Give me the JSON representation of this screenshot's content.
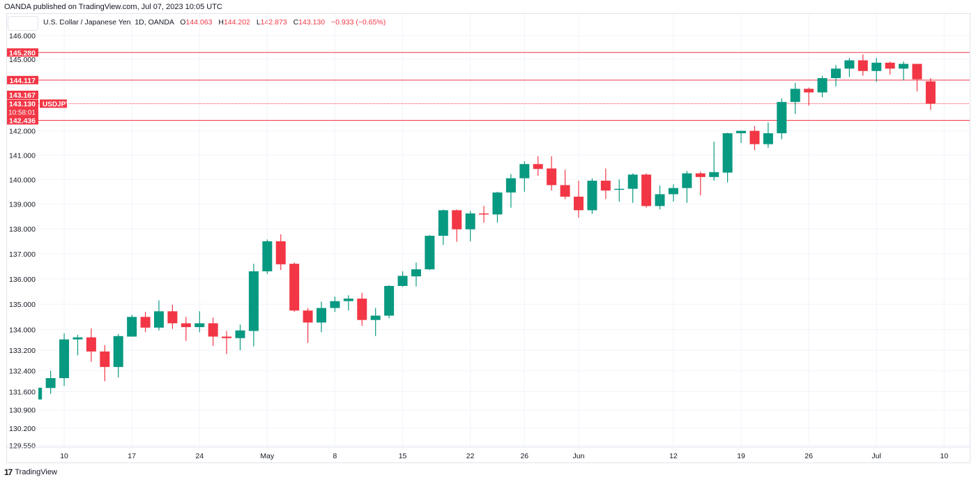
{
  "header": {
    "published": "OANDA published on TradingView.com, Jul 07, 2023 10:05 UTC"
  },
  "legend": {
    "symbol": "U.S. Dollar / Japanese Yen, 1D, OANDA",
    "o_label": "O",
    "o": "144.063",
    "h_label": "H",
    "h": "144.202",
    "l_label": "L",
    "l": "142.873",
    "c_label": "C",
    "c": "143.130",
    "change": "−0.933 (−0.65%)"
  },
  "footer": {
    "brand": "TradingView"
  },
  "colors": {
    "up": "#089981",
    "down": "#f23645",
    "grid": "#f0f3fa",
    "level": "#f23645"
  },
  "chart_data": {
    "type": "candlestick",
    "symbol": "USDJPY",
    "scale": "log",
    "y_ticks": [
      "146.000",
      "145.000",
      "142.000",
      "141.000",
      "140.000",
      "139.000",
      "138.000",
      "137.000",
      "136.000",
      "135.000",
      "134.000",
      "133.200",
      "132.400",
      "131.600",
      "130.900",
      "130.200",
      "129.550"
    ],
    "x_ticks": [
      {
        "label": "10",
        "bar": 2
      },
      {
        "label": "17",
        "bar": 7
      },
      {
        "label": "24",
        "bar": 12
      },
      {
        "label": "May",
        "bar": 17
      },
      {
        "label": "8",
        "bar": 22
      },
      {
        "label": "15",
        "bar": 27
      },
      {
        "label": "22",
        "bar": 32
      },
      {
        "label": "26",
        "bar": 36
      },
      {
        "label": "Jun",
        "bar": 40
      },
      {
        "label": "12",
        "bar": 47
      },
      {
        "label": "19",
        "bar": 52
      },
      {
        "label": "26",
        "bar": 57
      },
      {
        "label": "Jul",
        "bar": 62
      },
      {
        "label": "10",
        "bar": 67
      }
    ],
    "levels": [
      {
        "label": "145.280",
        "value": 145.28
      },
      {
        "label": "144.117",
        "value": 144.117
      },
      {
        "label": "142.436",
        "value": 142.436
      }
    ],
    "extra_label": {
      "label": "143.167",
      "value": 143.167
    },
    "current_price": {
      "label": "143.130",
      "value": 143.13,
      "countdown": "10:58:01",
      "symbol_tag": "USDJPY"
    },
    "ohlc": [
      [
        131.3,
        131.8,
        131.3,
        131.75
      ],
      [
        131.74,
        132.4,
        131.52,
        132.12
      ],
      [
        132.12,
        133.86,
        131.82,
        133.62
      ],
      [
        133.62,
        133.8,
        133.0,
        133.7
      ],
      [
        133.7,
        134.05,
        132.75,
        133.15
      ],
      [
        133.15,
        133.4,
        132.0,
        132.55
      ],
      [
        132.55,
        133.83,
        132.15,
        133.75
      ],
      [
        133.73,
        134.58,
        133.73,
        134.5
      ],
      [
        134.5,
        134.7,
        133.9,
        134.08
      ],
      [
        134.08,
        135.15,
        133.97,
        134.72
      ],
      [
        134.72,
        134.98,
        134.03,
        134.25
      ],
      [
        134.25,
        134.5,
        133.56,
        134.1
      ],
      [
        134.1,
        134.72,
        133.9,
        134.25
      ],
      [
        134.25,
        134.47,
        133.37,
        133.73
      ],
      [
        133.73,
        133.95,
        133.05,
        133.67
      ],
      [
        133.67,
        134.2,
        133.2,
        133.97
      ],
      [
        133.95,
        136.6,
        133.35,
        136.3
      ],
      [
        136.3,
        137.57,
        136.2,
        137.5
      ],
      [
        137.5,
        137.78,
        136.35,
        136.58
      ],
      [
        136.6,
        136.65,
        134.7,
        134.75
      ],
      [
        134.75,
        134.85,
        133.48,
        134.28
      ],
      [
        134.28,
        135.1,
        133.9,
        134.85
      ],
      [
        134.85,
        135.3,
        134.7,
        135.12
      ],
      [
        135.12,
        135.35,
        134.75,
        135.22
      ],
      [
        135.22,
        135.45,
        134.15,
        134.38
      ],
      [
        134.38,
        134.85,
        133.75,
        134.55
      ],
      [
        134.55,
        135.75,
        134.45,
        135.72
      ],
      [
        135.72,
        136.3,
        135.68,
        136.12
      ],
      [
        136.1,
        136.65,
        135.7,
        136.38
      ],
      [
        136.38,
        137.75,
        136.35,
        137.72
      ],
      [
        137.72,
        138.78,
        137.35,
        138.75
      ],
      [
        138.75,
        138.78,
        137.48,
        137.98
      ],
      [
        137.98,
        138.72,
        137.5,
        138.62
      ],
      [
        138.62,
        138.92,
        138.25,
        138.58
      ],
      [
        138.58,
        139.5,
        138.25,
        139.47
      ],
      [
        139.47,
        140.22,
        138.85,
        140.05
      ],
      [
        140.05,
        140.75,
        139.5,
        140.63
      ],
      [
        140.63,
        140.95,
        140.15,
        140.43
      ],
      [
        140.45,
        140.95,
        139.55,
        139.77
      ],
      [
        139.77,
        140.4,
        139.2,
        139.3
      ],
      [
        139.3,
        139.95,
        138.45,
        138.75
      ],
      [
        138.75,
        140.05,
        138.6,
        139.95
      ],
      [
        139.95,
        140.45,
        139.2,
        139.55
      ],
      [
        139.58,
        140.0,
        139.1,
        139.62
      ],
      [
        139.62,
        140.25,
        139.05,
        140.2
      ],
      [
        140.2,
        140.25,
        138.85,
        138.92
      ],
      [
        138.92,
        139.75,
        138.78,
        139.4
      ],
      [
        139.4,
        139.8,
        139.1,
        139.65
      ],
      [
        139.65,
        140.35,
        139.05,
        140.25
      ],
      [
        140.25,
        140.32,
        139.35,
        140.1
      ],
      [
        140.1,
        141.55,
        139.95,
        140.3
      ],
      [
        140.28,
        141.92,
        139.88,
        141.9
      ],
      [
        141.9,
        142.0,
        141.5,
        142.0
      ],
      [
        142.0,
        142.2,
        141.2,
        141.45
      ],
      [
        141.45,
        142.35,
        141.3,
        141.9
      ],
      [
        141.9,
        143.35,
        141.65,
        143.2
      ],
      [
        143.2,
        144.0,
        142.7,
        143.75
      ],
      [
        143.75,
        143.8,
        143.05,
        143.6
      ],
      [
        143.6,
        144.3,
        143.4,
        144.2
      ],
      [
        144.2,
        144.75,
        143.85,
        144.6
      ],
      [
        144.6,
        145.05,
        144.25,
        144.95
      ],
      [
        144.95,
        145.2,
        144.3,
        144.5
      ],
      [
        144.5,
        145.05,
        144.05,
        144.85
      ],
      [
        144.85,
        144.9,
        144.35,
        144.6
      ],
      [
        144.6,
        144.9,
        144.1,
        144.8
      ],
      [
        144.8,
        144.8,
        143.65,
        144.15
      ],
      [
        144.063,
        144.202,
        142.873,
        143.13
      ]
    ]
  }
}
